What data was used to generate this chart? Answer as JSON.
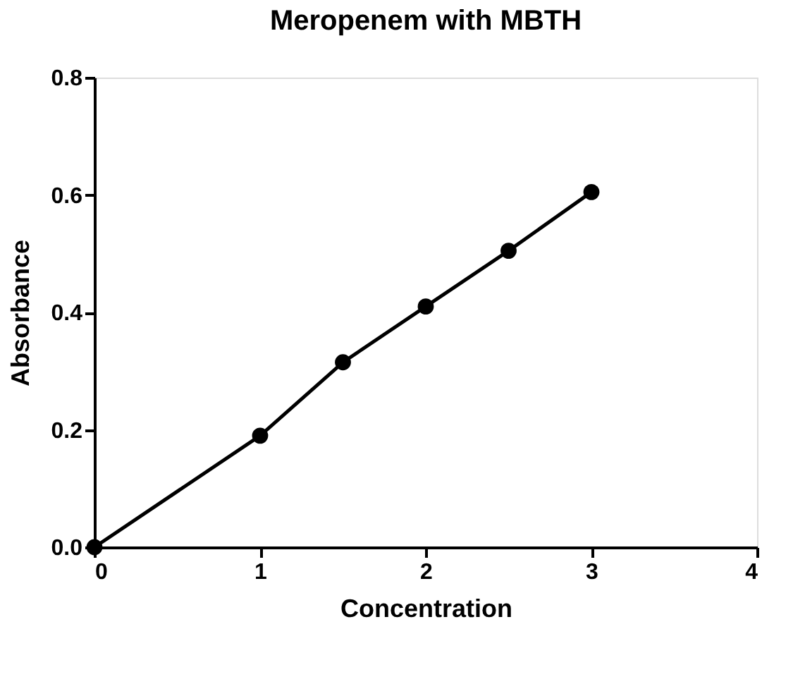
{
  "chart_data": {
    "type": "line",
    "title": "Meropenem with MBTH",
    "xlabel": "Concentration",
    "ylabel": "Absorbance",
    "x": [
      0,
      1,
      1.5,
      2,
      2.5,
      3
    ],
    "series": [
      {
        "color": "#000000",
        "values": [
          0,
          0.19,
          0.315,
          0.41,
          0.505,
          0.605
        ]
      }
    ],
    "xlim": [
      0,
      4
    ],
    "xticks": [
      0,
      1,
      2,
      3,
      4
    ],
    "ylim": [
      0,
      0.8
    ],
    "yticks": [
      {
        "value": 0,
        "label": "0.0"
      },
      {
        "value": 0.2,
        "label": "0.2"
      },
      {
        "value": 0.4,
        "label": "0.4"
      },
      {
        "value": 0.6,
        "label": "0.6"
      },
      {
        "value": 0.8,
        "label": "0.8"
      }
    ],
    "grid": false,
    "legend": false,
    "marker": "circle",
    "line_style": "solid"
  }
}
